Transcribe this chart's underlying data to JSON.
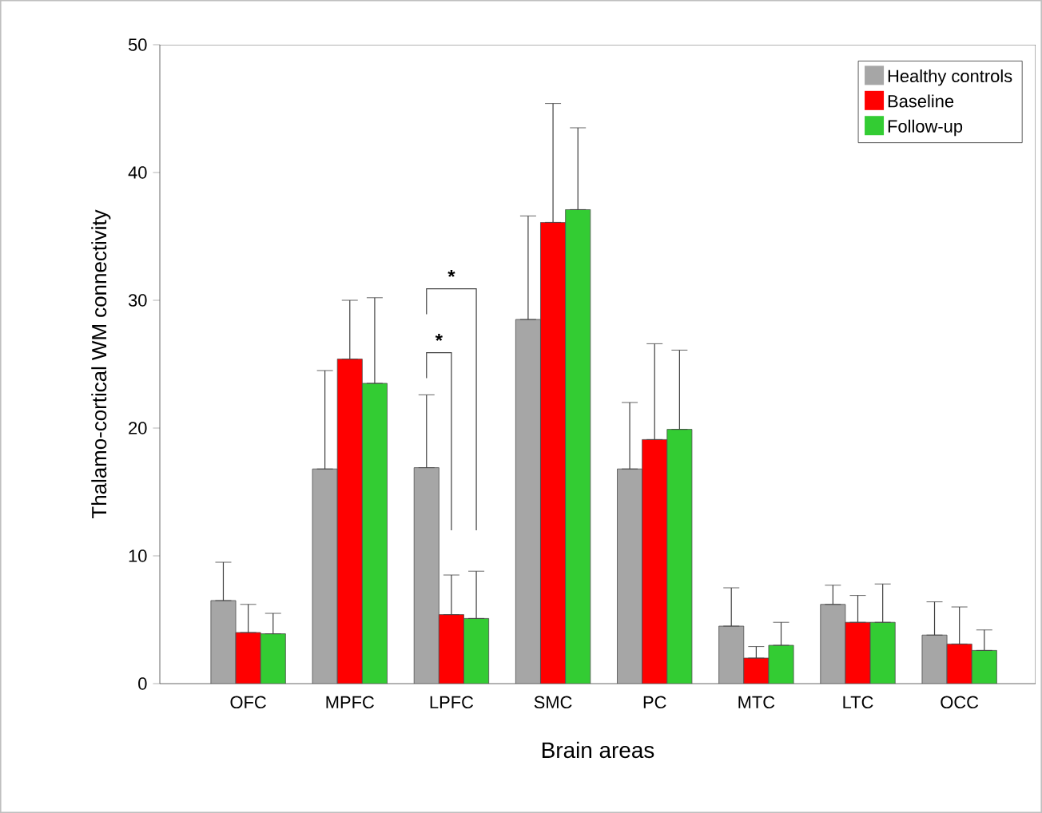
{
  "chart_data": {
    "type": "bar",
    "xlabel": "Brain areas",
    "ylabel": "Thalamo-cortical WM connectivity",
    "categories": [
      "OFC",
      "MPFC",
      "LPFC",
      "SMC",
      "PC",
      "MTC",
      "LTC",
      "OCC"
    ],
    "series": [
      {
        "name": "Healthy controls",
        "color": "#a6a6a6",
        "values": [
          6.5,
          16.8,
          16.9,
          28.5,
          16.8,
          4.5,
          6.2,
          3.8
        ],
        "errors": [
          [
            6.5,
            9.5
          ],
          [
            16.8,
            24.5
          ],
          [
            16.9,
            22.6
          ],
          [
            28.5,
            36.6
          ],
          [
            16.8,
            22.0
          ],
          [
            4.5,
            7.5
          ],
          [
            6.2,
            7.7
          ],
          [
            3.8,
            6.4
          ]
        ]
      },
      {
        "name": "Baseline",
        "color": "#ff0000",
        "values": [
          4.0,
          25.4,
          5.4,
          36.1,
          19.1,
          2.0,
          4.8,
          3.1
        ],
        "errors": [
          [
            4.0,
            6.2
          ],
          [
            25.4,
            30.0
          ],
          [
            5.4,
            8.5
          ],
          [
            36.1,
            45.4
          ],
          [
            19.1,
            26.6
          ],
          [
            2.0,
            2.9
          ],
          [
            4.8,
            6.9
          ],
          [
            3.1,
            6.0
          ]
        ]
      },
      {
        "name": "Follow-up",
        "color": "#33cc33",
        "values": [
          3.9,
          23.5,
          5.1,
          37.1,
          19.9,
          3.0,
          4.8,
          2.6
        ],
        "errors": [
          [
            3.9,
            5.5
          ],
          [
            23.5,
            30.2
          ],
          [
            5.1,
            8.8
          ],
          [
            37.1,
            43.5
          ],
          [
            19.9,
            26.1
          ],
          [
            3.0,
            4.8
          ],
          [
            4.8,
            7.8
          ],
          [
            2.6,
            4.2
          ]
        ]
      }
    ],
    "ylim": [
      0,
      50
    ],
    "yticks": [
      0,
      10,
      20,
      30,
      40,
      50
    ],
    "legend": "top right",
    "annotations": [
      "*",
      "*"
    ]
  }
}
